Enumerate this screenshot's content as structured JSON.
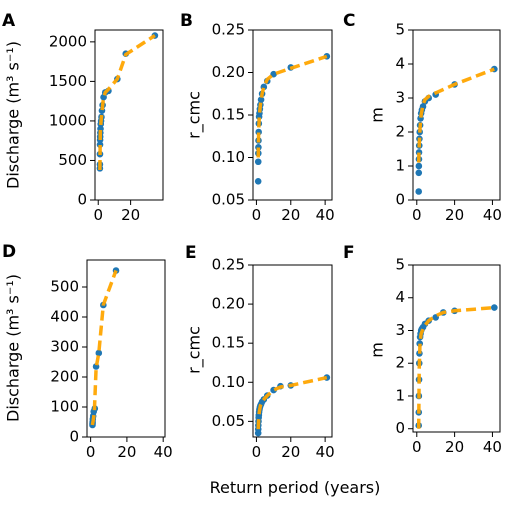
{
  "figure": {
    "common_xlabel": "Return period (years)"
  },
  "colors": {
    "points": "#1f77b4",
    "fit_line": "#ffa500"
  },
  "chart_data": [
    {
      "panel": "A",
      "type": "scatter",
      "ylabel": "Discharge (m³ s⁻¹)",
      "xlim": [
        -2,
        40
      ],
      "ylim": [
        0,
        2150
      ],
      "xticks": [
        0,
        20
      ],
      "xtick_labels": [
        "0",
        "20"
      ],
      "yticks": [
        0,
        500,
        1000,
        1500,
        2000
      ],
      "ytick_labels": [
        "0",
        "500",
        "1000",
        "1500",
        "2000"
      ],
      "series": [
        {
          "role": "observed",
          "x": [
            1.02,
            1.04,
            1.06,
            1.1,
            1.15,
            1.2,
            1.3,
            1.4,
            1.55,
            1.75,
            2.0,
            2.3,
            2.7,
            3.3,
            4.3,
            6.3,
            11.8,
            17.0,
            35.0
          ],
          "y": [
            400,
            450,
            580,
            700,
            760,
            800,
            850,
            900,
            960,
            1000,
            1050,
            1130,
            1200,
            1300,
            1360,
            1380,
            1530,
            1850,
            2080
          ]
        },
        {
          "role": "fit",
          "x": [
            1.0,
            1.3,
            1.7,
            2.2,
            3.0,
            4.3,
            6.3,
            11.8,
            17.0,
            35.0
          ],
          "y": [
            380,
            850,
            990,
            1090,
            1250,
            1360,
            1400,
            1530,
            1840,
            2080
          ]
        }
      ]
    },
    {
      "panel": "B",
      "type": "scatter",
      "ylabel": "r_cmc",
      "xlim": [
        -2,
        44
      ],
      "ylim": [
        0.05,
        0.25
      ],
      "xticks": [
        0,
        20,
        40
      ],
      "xtick_labels": [
        "0",
        "20",
        "40"
      ],
      "yticks": [
        0.05,
        0.1,
        0.15,
        0.2,
        0.25
      ],
      "ytick_labels": [
        "0.05",
        "0.10",
        "0.15",
        "0.20",
        "0.25"
      ],
      "series": [
        {
          "role": "observed",
          "x": [
            1.02,
            1.05,
            1.1,
            1.15,
            1.2,
            1.3,
            1.4,
            1.55,
            1.75,
            2.0,
            2.3,
            2.7,
            3.3,
            4.3,
            6.3,
            10.0,
            20.0,
            41.0
          ],
          "y": [
            0.072,
            0.095,
            0.105,
            0.112,
            0.12,
            0.13,
            0.14,
            0.148,
            0.152,
            0.157,
            0.162,
            0.168,
            0.175,
            0.183,
            0.19,
            0.198,
            0.206,
            0.219
          ]
        },
        {
          "role": "fit",
          "x": [
            1.0,
            1.3,
            1.7,
            2.3,
            3.3,
            4.3,
            6.3,
            10.0,
            20.0,
            41.0
          ],
          "y": [
            0.1,
            0.133,
            0.15,
            0.162,
            0.175,
            0.183,
            0.192,
            0.198,
            0.205,
            0.219
          ]
        }
      ]
    },
    {
      "panel": "C",
      "type": "scatter",
      "ylabel": "m",
      "xlim": [
        -2,
        44
      ],
      "ylim": [
        0,
        5
      ],
      "xticks": [
        0,
        20,
        40
      ],
      "xtick_labels": [
        "0",
        "20",
        "40"
      ],
      "yticks": [
        0,
        1,
        2,
        3,
        4,
        5
      ],
      "ytick_labels": [
        "0",
        "1",
        "2",
        "3",
        "4",
        "5"
      ],
      "series": [
        {
          "role": "observed",
          "x": [
            1.02,
            1.05,
            1.1,
            1.15,
            1.2,
            1.3,
            1.4,
            1.55,
            1.75,
            2.0,
            2.3,
            2.7,
            3.3,
            4.3,
            6.3,
            10.0,
            20.0,
            41.0
          ],
          "y": [
            0.25,
            0.8,
            1.0,
            1.2,
            1.4,
            1.6,
            1.8,
            2.0,
            2.2,
            2.4,
            2.55,
            2.65,
            2.75,
            2.9,
            3.0,
            3.1,
            3.4,
            3.85
          ]
        },
        {
          "role": "fit",
          "x": [
            1.0,
            1.3,
            1.7,
            2.3,
            3.3,
            4.3,
            6.3,
            10.0,
            20.0,
            41.0
          ],
          "y": [
            1.1,
            1.6,
            2.1,
            2.5,
            2.8,
            2.95,
            3.05,
            3.15,
            3.4,
            3.85
          ]
        }
      ]
    },
    {
      "panel": "D",
      "type": "scatter",
      "ylabel": "Discharge (m³ s⁻¹)",
      "xlim": [
        -2,
        41
      ],
      "ylim": [
        0,
        590
      ],
      "xticks": [
        0,
        20,
        40
      ],
      "xtick_labels": [
        "0",
        "20",
        "40"
      ],
      "yticks": [
        0,
        100,
        200,
        300,
        400,
        500
      ],
      "ytick_labels": [
        "0",
        "100",
        "200",
        "300",
        "400",
        "500"
      ],
      "series": [
        {
          "role": "observed",
          "x": [
            1.02,
            1.05,
            1.1,
            1.2,
            1.4,
            1.7,
            2.3,
            3.0,
            4.5,
            7.0,
            14.0
          ],
          "y": [
            40,
            45,
            50,
            60,
            70,
            85,
            95,
            235,
            280,
            440,
            555
          ]
        },
        {
          "role": "fit",
          "x": [
            1.0,
            1.4,
            2.0,
            3.0,
            4.5,
            7.0,
            14.0
          ],
          "y": [
            40,
            55,
            80,
            230,
            280,
            440,
            555
          ]
        }
      ]
    },
    {
      "panel": "E",
      "type": "scatter",
      "ylabel": "r_cmc",
      "xlim": [
        -2,
        44
      ],
      "ylim": [
        0.03,
        0.25
      ],
      "xticks": [
        0,
        20,
        40
      ],
      "xtick_labels": [
        "0",
        "20",
        "40"
      ],
      "yticks": [
        0.05,
        0.1,
        0.15,
        0.2,
        0.25
      ],
      "ytick_labels": [
        "0.05",
        "0.10",
        "0.15",
        "0.20",
        "0.25"
      ],
      "series": [
        {
          "role": "observed",
          "x": [
            1.02,
            1.05,
            1.1,
            1.2,
            1.3,
            1.4,
            1.55,
            1.75,
            2.0,
            2.3,
            2.7,
            3.3,
            4.3,
            6.3,
            10.0,
            14.0,
            20.0,
            41.0
          ],
          "y": [
            0.035,
            0.04,
            0.045,
            0.05,
            0.055,
            0.058,
            0.062,
            0.065,
            0.068,
            0.07,
            0.072,
            0.075,
            0.078,
            0.083,
            0.09,
            0.095,
            0.096,
            0.106
          ]
        },
        {
          "role": "fit",
          "x": [
            1.0,
            1.3,
            1.7,
            2.3,
            3.3,
            4.3,
            6.3,
            10.0,
            14.0,
            20.0,
            41.0
          ],
          "y": [
            0.04,
            0.055,
            0.063,
            0.07,
            0.075,
            0.078,
            0.083,
            0.09,
            0.094,
            0.096,
            0.106
          ]
        }
      ]
    },
    {
      "panel": "F",
      "type": "scatter",
      "ylabel": "m",
      "xlim": [
        -2,
        44
      ],
      "ylim": [
        -0.1,
        5
      ],
      "xticks": [
        0,
        20,
        40
      ],
      "xtick_labels": [
        "0",
        "20",
        "40"
      ],
      "yticks": [
        0,
        1,
        2,
        3,
        4,
        5
      ],
      "ytick_labels": [
        "0",
        "1",
        "2",
        "3",
        "4",
        "5"
      ],
      "series": [
        {
          "role": "observed",
          "x": [
            1.02,
            1.05,
            1.1,
            1.2,
            1.3,
            1.4,
            1.55,
            1.75,
            2.0,
            2.3,
            2.7,
            3.3,
            4.3,
            6.3,
            10.0,
            14.0,
            20.0,
            41.0
          ],
          "y": [
            0.1,
            0.5,
            1.0,
            1.5,
            2.0,
            2.3,
            2.6,
            2.8,
            2.9,
            3.0,
            3.05,
            3.1,
            3.2,
            3.3,
            3.4,
            3.55,
            3.6,
            3.7
          ]
        },
        {
          "role": "fit",
          "x": [
            1.0,
            1.3,
            1.7,
            2.3,
            3.3,
            4.3,
            6.3,
            10.0,
            14.0,
            20.0,
            41.0
          ],
          "y": [
            0.0,
            1.8,
            2.6,
            2.9,
            3.05,
            3.15,
            3.3,
            3.45,
            3.55,
            3.6,
            3.7
          ]
        }
      ]
    }
  ]
}
